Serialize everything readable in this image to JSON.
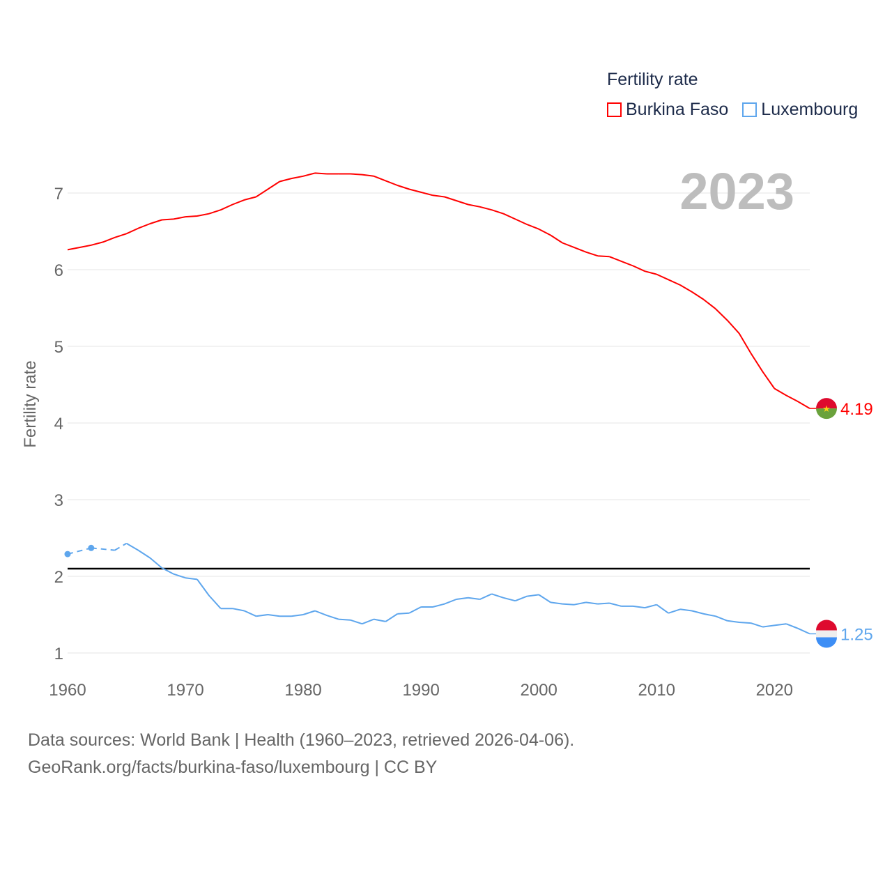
{
  "chart_data": {
    "type": "line",
    "title": "Fertility rate",
    "ylabel": "Fertility rate",
    "xlabel": "",
    "year_label": "2023",
    "xlim": [
      1960,
      2023
    ],
    "ylim": [
      1,
      7
    ],
    "x_ticks": [
      1960,
      1970,
      1980,
      1990,
      2000,
      2010,
      2020
    ],
    "y_ticks": [
      1,
      2,
      3,
      4,
      5,
      6,
      7
    ],
    "grid": true,
    "legend_position": "top-right",
    "reference_line": {
      "value": 2.1,
      "color": "#000000"
    },
    "x": [
      1960,
      1961,
      1962,
      1963,
      1964,
      1965,
      1966,
      1967,
      1968,
      1969,
      1970,
      1971,
      1972,
      1973,
      1974,
      1975,
      1976,
      1977,
      1978,
      1979,
      1980,
      1981,
      1982,
      1983,
      1984,
      1985,
      1986,
      1987,
      1988,
      1989,
      1990,
      1991,
      1992,
      1993,
      1994,
      1995,
      1996,
      1997,
      1998,
      1999,
      2000,
      2001,
      2002,
      2003,
      2004,
      2005,
      2006,
      2007,
      2008,
      2009,
      2010,
      2011,
      2012,
      2013,
      2014,
      2015,
      2016,
      2017,
      2018,
      2019,
      2020,
      2021,
      2022,
      2023
    ],
    "series": [
      {
        "name": "Burkina Faso",
        "color": "#ff0000",
        "end_label": "4.19",
        "values": [
          6.26,
          6.29,
          6.32,
          6.36,
          6.42,
          6.47,
          6.54,
          6.6,
          6.65,
          6.66,
          6.69,
          6.7,
          6.73,
          6.78,
          6.85,
          6.91,
          6.95,
          7.05,
          7.15,
          7.19,
          7.22,
          7.26,
          7.25,
          7.25,
          7.25,
          7.24,
          7.22,
          7.16,
          7.1,
          7.05,
          7.01,
          6.97,
          6.95,
          6.9,
          6.85,
          6.82,
          6.78,
          6.73,
          6.66,
          6.59,
          6.53,
          6.45,
          6.35,
          6.29,
          6.23,
          6.18,
          6.17,
          6.11,
          6.05,
          5.98,
          5.94,
          5.87,
          5.8,
          5.71,
          5.61,
          5.49,
          5.34,
          5.17,
          4.91,
          4.67,
          4.45,
          4.36,
          4.28,
          4.19
        ]
      },
      {
        "name": "Luxembourg",
        "color": "#5ea6ed",
        "end_label": "1.25",
        "values": [
          2.29,
          null,
          2.37,
          null,
          2.34,
          2.43,
          2.34,
          2.24,
          2.11,
          2.03,
          1.98,
          1.96,
          1.75,
          1.58,
          1.58,
          1.55,
          1.48,
          1.5,
          1.48,
          1.48,
          1.5,
          1.55,
          1.49,
          1.44,
          1.43,
          1.38,
          1.44,
          1.41,
          1.51,
          1.52,
          1.6,
          1.6,
          1.64,
          1.7,
          1.72,
          1.7,
          1.77,
          1.72,
          1.68,
          1.74,
          1.76,
          1.66,
          1.64,
          1.63,
          1.66,
          1.64,
          1.65,
          1.61,
          1.61,
          1.59,
          1.63,
          1.52,
          1.57,
          1.55,
          1.51,
          1.48,
          1.42,
          1.4,
          1.39,
          1.34,
          1.36,
          1.38,
          1.32,
          1.25
        ]
      }
    ]
  },
  "footer": {
    "line1": "Data sources: World Bank | Health (1960–2023, retrieved 2026-04-06).",
    "line2": "GeoRank.org/facts/burkina-faso/luxembourg | CC BY"
  }
}
